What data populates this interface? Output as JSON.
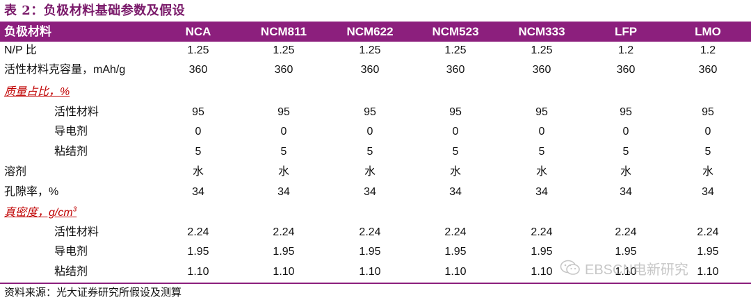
{
  "title": "表 2：负极材料基础参数及假设",
  "header": {
    "first": "负极材料",
    "columns": [
      "NCA",
      "NCM811",
      "NCM622",
      "NCM523",
      "NCM333",
      "LFP",
      "LMO"
    ]
  },
  "rows": [
    {
      "label": "N/P 比",
      "values": [
        "1.25",
        "1.25",
        "1.25",
        "1.25",
        "1.25",
        "1.2",
        "1.2"
      ]
    },
    {
      "label": "活性材料克容量，mAh/g",
      "values": [
        "360",
        "360",
        "360",
        "360",
        "360",
        "360",
        "360"
      ]
    },
    {
      "label": "质量占比，%",
      "values": []
    },
    {
      "label": "活性材料",
      "values": [
        "95",
        "95",
        "95",
        "95",
        "95",
        "95",
        "95"
      ]
    },
    {
      "label": "导电剂",
      "values": [
        "0",
        "0",
        "0",
        "0",
        "0",
        "0",
        "0"
      ]
    },
    {
      "label": "粘结剂",
      "values": [
        "5",
        "5",
        "5",
        "5",
        "5",
        "5",
        "5"
      ]
    },
    {
      "label": "溶剂",
      "values": [
        "水",
        "水",
        "水",
        "水",
        "水",
        "水",
        "水"
      ]
    },
    {
      "label": "孔隙率，%",
      "values": [
        "34",
        "34",
        "34",
        "34",
        "34",
        "34",
        "34"
      ]
    },
    {
      "label": "真密度，g/cm",
      "label_sup": "3",
      "values": []
    },
    {
      "label": "活性材料",
      "values": [
        "2.24",
        "2.24",
        "2.24",
        "2.24",
        "2.24",
        "2.24",
        "2.24"
      ]
    },
    {
      "label": "导电剂",
      "values": [
        "1.95",
        "1.95",
        "1.95",
        "1.95",
        "1.95",
        "1.95",
        "1.95"
      ]
    },
    {
      "label": "粘结剂",
      "values": [
        "1.10",
        "1.10",
        "1.10",
        "1.10",
        "1.10",
        "1.10",
        "1.10"
      ]
    }
  ],
  "source": "资料来源：光大证券研究所假设及测算",
  "watermark": "EBSCN电新研究",
  "colors": {
    "header_bg": "#8c1f7d",
    "section_label": "#c00000"
  }
}
